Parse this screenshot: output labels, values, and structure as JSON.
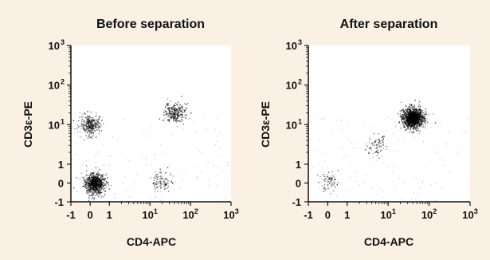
{
  "chart_data": [
    {
      "type": "scatter",
      "title": "Before separation",
      "xlabel": "CD4-APC",
      "ylabel": "CD3ε-PE",
      "x_scale": "biexponential",
      "y_scale": "biexponential",
      "xlim": [
        -1,
        1000
      ],
      "ylim": [
        -1,
        1000
      ],
      "x_ticks": [
        {
          "value": -1,
          "label": "-1",
          "exp": ""
        },
        {
          "value": 0,
          "label": "0",
          "exp": ""
        },
        {
          "value": 1,
          "label": "1",
          "exp": ""
        },
        {
          "value": 10,
          "label": "10",
          "exp": "1"
        },
        {
          "value": 100,
          "label": "10",
          "exp": "2"
        },
        {
          "value": 1000,
          "label": "10",
          "exp": "3"
        }
      ],
      "y_ticks": [
        {
          "value": -1,
          "label": "-1",
          "exp": ""
        },
        {
          "value": 0,
          "label": "0",
          "exp": ""
        },
        {
          "value": 1,
          "label": "1",
          "exp": ""
        },
        {
          "value": 10,
          "label": "10",
          "exp": "1"
        },
        {
          "value": 100,
          "label": "10",
          "exp": "2"
        },
        {
          "value": 1000,
          "label": "10",
          "exp": "3"
        }
      ],
      "populations": [
        {
          "x": 0.2,
          "y": 0.0,
          "share": 0.55
        },
        {
          "x": 0.0,
          "y": 10,
          "share": 0.2
        },
        {
          "x": 40,
          "y": 20,
          "share": 0.18
        },
        {
          "x": 20,
          "y": 0.1,
          "share": 0.07
        }
      ]
    },
    {
      "type": "scatter",
      "title": "After separation",
      "xlabel": "CD4-APC",
      "ylabel": "CD3ε-PE",
      "x_scale": "biexponential",
      "y_scale": "biexponential",
      "xlim": [
        -1,
        1000
      ],
      "ylim": [
        -1,
        1000
      ],
      "x_ticks": [
        {
          "value": -1,
          "label": "-1",
          "exp": ""
        },
        {
          "value": 0,
          "label": "0",
          "exp": ""
        },
        {
          "value": 1,
          "label": "1",
          "exp": ""
        },
        {
          "value": 10,
          "label": "10",
          "exp": "1"
        },
        {
          "value": 100,
          "label": "10",
          "exp": "2"
        },
        {
          "value": 1000,
          "label": "10",
          "exp": "3"
        }
      ],
      "y_ticks": [
        {
          "value": -1,
          "label": "-1",
          "exp": ""
        },
        {
          "value": 0,
          "label": "0",
          "exp": ""
        },
        {
          "value": 1,
          "label": "1",
          "exp": ""
        },
        {
          "value": 10,
          "label": "10",
          "exp": "1"
        },
        {
          "value": 100,
          "label": "10",
          "exp": "2"
        },
        {
          "value": 1000,
          "label": "10",
          "exp": "3"
        }
      ],
      "populations": [
        {
          "x": 40,
          "y": 15,
          "share": 0.9
        },
        {
          "x": 0.0,
          "y": 0.1,
          "share": 0.05
        },
        {
          "x": 5,
          "y": 3,
          "share": 0.05
        }
      ]
    }
  ],
  "colors": {
    "background": "#fbf0e4",
    "plot_background": "#ffffff",
    "points": "#000000"
  }
}
